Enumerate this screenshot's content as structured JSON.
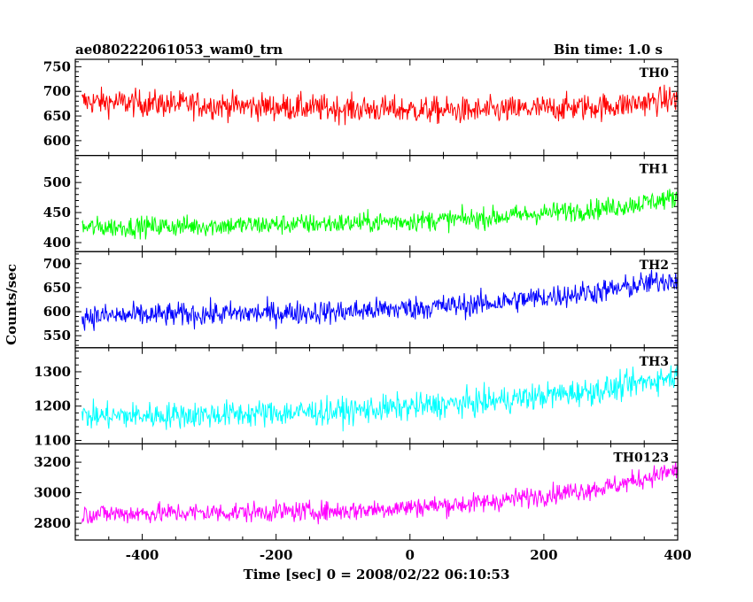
{
  "title_left": "ae080222061053_wam0_trn",
  "title_right": "Bin time: 1.0 s",
  "xlabel": "Time [sec] 0 = 2008/02/22 06:10:53",
  "ylabel": "Counts/sec",
  "chart_data": {
    "type": "line",
    "title": "ae080222061053_wam0_trn",
    "subtitle": "Bin time: 1.0 s",
    "xlabel": "Time [sec] 0 = 2008/02/22 06:10:53",
    "ylabel": "Counts/sec",
    "xlim": [
      -500,
      400
    ],
    "x_range": [
      -500,
      400
    ],
    "bin_time": 1.0,
    "x_ticks": [
      -400,
      -200,
      0,
      200,
      400
    ],
    "grid": false,
    "series": [
      {
        "name": "TH0",
        "color": "#ff0000",
        "ylim": [
          570,
          765
        ],
        "y_ticks": [
          600,
          650,
          700,
          750
        ],
        "trend_x": [
          -500,
          -300,
          -100,
          100,
          300,
          400
        ],
        "trend_y": [
          680,
          672,
          665,
          660,
          670,
          685
        ],
        "noise_amplitude": 35
      },
      {
        "name": "TH1",
        "color": "#00ff00",
        "ylim": [
          385,
          545
        ],
        "y_ticks": [
          400,
          450,
          500
        ],
        "trend_x": [
          -500,
          -300,
          -100,
          100,
          300,
          400
        ],
        "trend_y": [
          425,
          428,
          432,
          440,
          458,
          475
        ],
        "noise_amplitude": 22
      },
      {
        "name": "TH2",
        "color": "#0000ff",
        "ylim": [
          525,
          725
        ],
        "y_ticks": [
          550,
          600,
          650,
          700
        ],
        "trend_x": [
          -500,
          -300,
          -100,
          100,
          300,
          400
        ],
        "trend_y": [
          590,
          595,
          600,
          615,
          645,
          670
        ],
        "noise_amplitude": 32
      },
      {
        "name": "TH3",
        "color": "#00ffff",
        "ylim": [
          1090,
          1370
        ],
        "y_ticks": [
          1100,
          1200,
          1300
        ],
        "trend_x": [
          -500,
          -300,
          -100,
          100,
          300,
          400
        ],
        "trend_y": [
          1170,
          1175,
          1185,
          1210,
          1250,
          1290
        ],
        "noise_amplitude": 50
      },
      {
        "name": "TH0123",
        "color": "#ff00ff",
        "ylim": [
          2690,
          3320
        ],
        "y_ticks": [
          2800,
          3000,
          3200
        ],
        "trend_x": [
          -500,
          -300,
          -100,
          100,
          300,
          400
        ],
        "trend_y": [
          2860,
          2870,
          2880,
          2930,
          3040,
          3150
        ],
        "noise_amplitude": 85
      }
    ]
  }
}
